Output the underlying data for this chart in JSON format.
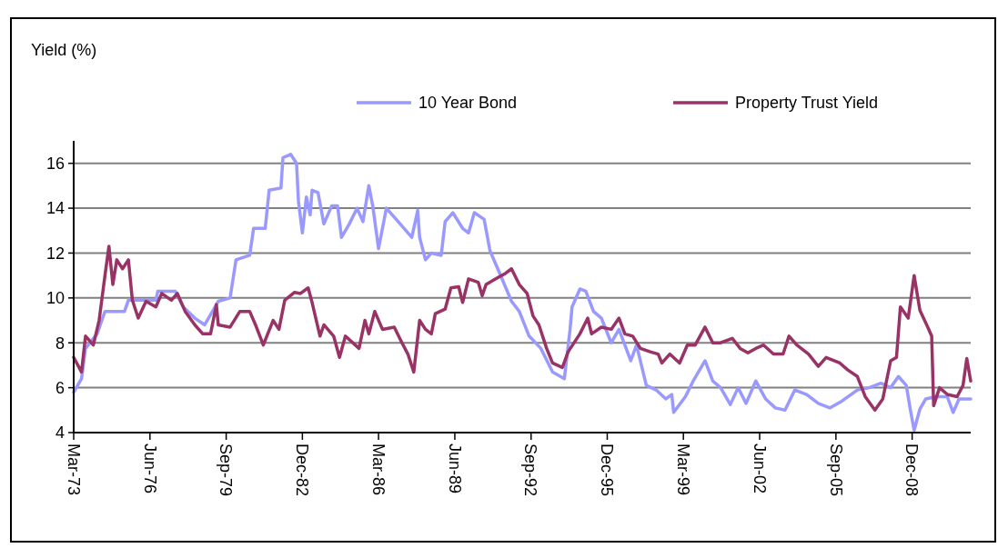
{
  "chart_data": {
    "type": "line",
    "ylabel": "Yield (%)",
    "xlim": [
      "1973-03",
      "2011-06"
    ],
    "ylim": [
      4,
      17
    ],
    "yticks": [
      4,
      6,
      8,
      10,
      12,
      14,
      16
    ],
    "xticks": [
      {
        "value": "1973-03",
        "label": "Mar-73"
      },
      {
        "value": "1976-06",
        "label": "Jun-76"
      },
      {
        "value": "1979-09",
        "label": "Sep-79"
      },
      {
        "value": "1982-12",
        "label": "Dec-82"
      },
      {
        "value": "1986-03",
        "label": "Mar-86"
      },
      {
        "value": "1989-06",
        "label": "Jun-89"
      },
      {
        "value": "1992-09",
        "label": "Sep-92"
      },
      {
        "value": "1995-12",
        "label": "Dec-95"
      },
      {
        "value": "1999-03",
        "label": "Mar-99"
      },
      {
        "value": "2002-06",
        "label": "Jun-02"
      },
      {
        "value": "2005-09",
        "label": "Sep-05"
      },
      {
        "value": "2008-12",
        "label": "Dec-08"
      }
    ],
    "grid": "y",
    "legend": "top",
    "series": [
      {
        "name": "10 Year Bond",
        "color": "#9999ff",
        "x": [
          "1973-03",
          "1973-07",
          "1973-09",
          "1974-03",
          "1974-07",
          "1975-05",
          "1975-07",
          "1976-09",
          "1976-10",
          "1977-07",
          "1977-11",
          "1978-05",
          "1978-10",
          "1979-05",
          "1979-11",
          "1980-02",
          "1980-09",
          "1980-11",
          "1981-05",
          "1981-07",
          "1982-01",
          "1982-02",
          "1982-06",
          "1982-09",
          "1982-10",
          "1982-12",
          "1983-02",
          "1983-04",
          "1983-05",
          "1983-08",
          "1983-11",
          "1984-03",
          "1984-06",
          "1984-08",
          "1984-12",
          "1985-04",
          "1985-07",
          "1985-10",
          "1985-12",
          "1986-03",
          "1986-07",
          "1987-01",
          "1987-08",
          "1987-11",
          "1987-12",
          "1988-03",
          "1988-06",
          "1988-11",
          "1989-01",
          "1989-05",
          "1989-10",
          "1990-01",
          "1990-04",
          "1990-09",
          "1990-12",
          "1991-04",
          "1991-11",
          "1992-03",
          "1992-08",
          "1993-02",
          "1993-08",
          "1994-02",
          "1994-05",
          "1994-06",
          "1994-10",
          "1995-01",
          "1995-05",
          "1995-09",
          "1996-02",
          "1996-06",
          "1996-12",
          "1997-03",
          "1997-08",
          "1998-01",
          "1998-06",
          "1998-09",
          "1998-10",
          "1999-04",
          "1999-08",
          "2000-02",
          "2000-06",
          "2000-10",
          "2001-03",
          "2001-07",
          "2001-11",
          "2002-04",
          "2002-09",
          "2003-02",
          "2003-07",
          "2003-12",
          "2004-06",
          "2004-12",
          "2005-06",
          "2005-12",
          "2006-08",
          "2007-02",
          "2007-08",
          "2008-01",
          "2008-05",
          "2008-09",
          "2008-11",
          "2009-01",
          "2009-04",
          "2009-07",
          "2009-12",
          "2010-06",
          "2010-09",
          "2010-12",
          "2011-06"
        ],
        "values": [
          5.8,
          6.4,
          7.75,
          8.4,
          9.4,
          9.4,
          9.9,
          9.9,
          10.3,
          10.3,
          9.6,
          9.1,
          8.8,
          9.85,
          10.0,
          11.7,
          11.9,
          13.1,
          13.1,
          14.8,
          14.9,
          16.25,
          16.4,
          16.0,
          14.3,
          12.9,
          14.5,
          13.7,
          14.8,
          14.7,
          13.3,
          14.1,
          14.1,
          12.7,
          13.3,
          14.0,
          13.4,
          15.0,
          14.1,
          12.2,
          14.0,
          13.4,
          12.7,
          13.9,
          12.7,
          11.7,
          12.0,
          11.9,
          13.4,
          13.8,
          13.1,
          12.9,
          13.8,
          13.5,
          12.1,
          11.3,
          9.85,
          9.4,
          8.3,
          7.75,
          6.7,
          6.4,
          8.6,
          9.6,
          10.4,
          10.3,
          9.4,
          9.1,
          8.0,
          8.6,
          7.2,
          7.9,
          6.1,
          5.9,
          5.5,
          5.7,
          4.9,
          5.6,
          6.3,
          7.2,
          6.3,
          6.0,
          5.25,
          6.0,
          5.3,
          6.3,
          5.5,
          5.1,
          5.0,
          5.9,
          5.7,
          5.3,
          5.1,
          5.4,
          5.9,
          6.0,
          6.2,
          6.0,
          6.5,
          6.1,
          5.05,
          4.1,
          5.05,
          5.5,
          5.6,
          5.6,
          4.9,
          5.5,
          5.5
        ]
      },
      {
        "name": "Property  Trust Yield",
        "color": "#993366",
        "x": [
          "1973-03",
          "1973-07",
          "1973-09",
          "1974-01",
          "1974-04",
          "1974-07",
          "1974-09",
          "1974-11",
          "1975-01",
          "1975-04",
          "1975-07",
          "1975-09",
          "1975-12",
          "1976-04",
          "1976-09",
          "1976-12",
          "1977-05",
          "1977-08",
          "1977-12",
          "1978-05",
          "1978-09",
          "1979-01",
          "1979-04",
          "1979-05",
          "1979-11",
          "1980-04",
          "1980-09",
          "1980-12",
          "1981-04",
          "1981-09",
          "1981-12",
          "1982-03",
          "1982-08",
          "1982-11",
          "1983-03",
          "1983-05",
          "1983-09",
          "1983-11",
          "1984-04",
          "1984-07",
          "1984-10",
          "1985-05",
          "1985-08",
          "1985-10",
          "1986-01",
          "1986-05",
          "1986-11",
          "1987-03",
          "1987-06",
          "1987-09",
          "1987-12",
          "1988-03",
          "1988-06",
          "1988-08",
          "1989-01",
          "1989-04",
          "1989-08",
          "1989-10",
          "1990-01",
          "1990-06",
          "1990-08",
          "1990-10",
          "1991-03",
          "1991-08",
          "1991-11",
          "1992-03",
          "1992-07",
          "1992-10",
          "1993-01",
          "1993-05",
          "1993-08",
          "1994-01",
          "1994-04",
          "1994-10",
          "1995-02",
          "1995-04",
          "1995-09",
          "1996-02",
          "1996-06",
          "1996-09",
          "1997-01",
          "1997-05",
          "1997-10",
          "1998-02",
          "1998-04",
          "1998-08",
          "1999-01",
          "1999-05",
          "1999-09",
          "2000-02",
          "2000-06",
          "2000-10",
          "2001-04",
          "2001-08",
          "2001-12",
          "2002-04",
          "2002-08",
          "2003-01",
          "2003-06",
          "2003-09",
          "2004-01",
          "2004-07",
          "2004-12",
          "2005-04",
          "2005-11",
          "2006-03",
          "2006-08",
          "2006-12",
          "2007-05",
          "2007-09",
          "2008-01",
          "2008-04",
          "2008-06",
          "2008-10",
          "2009-01",
          "2009-04",
          "2009-08",
          "2009-10",
          "2009-11",
          "2010-02",
          "2010-06",
          "2010-11",
          "2011-02",
          "2011-04",
          "2011-06"
        ],
        "values": [
          7.35,
          6.7,
          8.3,
          7.9,
          9.0,
          11.0,
          12.3,
          10.6,
          11.7,
          11.3,
          11.7,
          9.9,
          9.1,
          9.85,
          9.6,
          10.2,
          9.9,
          10.2,
          9.4,
          8.8,
          8.4,
          8.4,
          9.7,
          8.8,
          8.7,
          9.4,
          9.4,
          8.8,
          7.9,
          9.0,
          8.6,
          9.9,
          10.25,
          10.2,
          10.45,
          9.8,
          8.3,
          8.8,
          8.3,
          7.35,
          8.3,
          7.75,
          9.0,
          8.4,
          9.4,
          8.6,
          8.7,
          8.0,
          7.5,
          6.7,
          9.0,
          8.6,
          8.4,
          9.3,
          9.5,
          10.45,
          10.5,
          9.8,
          10.85,
          10.7,
          10.1,
          10.6,
          10.85,
          11.1,
          11.3,
          10.6,
          10.2,
          9.2,
          8.8,
          7.75,
          7.1,
          6.9,
          7.6,
          8.4,
          9.1,
          8.4,
          8.7,
          8.6,
          9.1,
          8.4,
          8.3,
          7.75,
          7.6,
          7.5,
          7.1,
          7.5,
          7.1,
          7.9,
          7.9,
          8.7,
          8.0,
          8.0,
          8.2,
          7.75,
          7.55,
          7.75,
          7.9,
          7.5,
          7.5,
          8.3,
          7.9,
          7.5,
          6.95,
          7.35,
          7.1,
          6.8,
          6.5,
          5.6,
          5.0,
          5.5,
          7.2,
          7.35,
          9.6,
          9.1,
          11.0,
          9.45,
          8.7,
          8.3,
          5.2,
          6.0,
          5.7,
          5.6,
          6.1,
          7.3,
          6.3
        ]
      }
    ]
  }
}
